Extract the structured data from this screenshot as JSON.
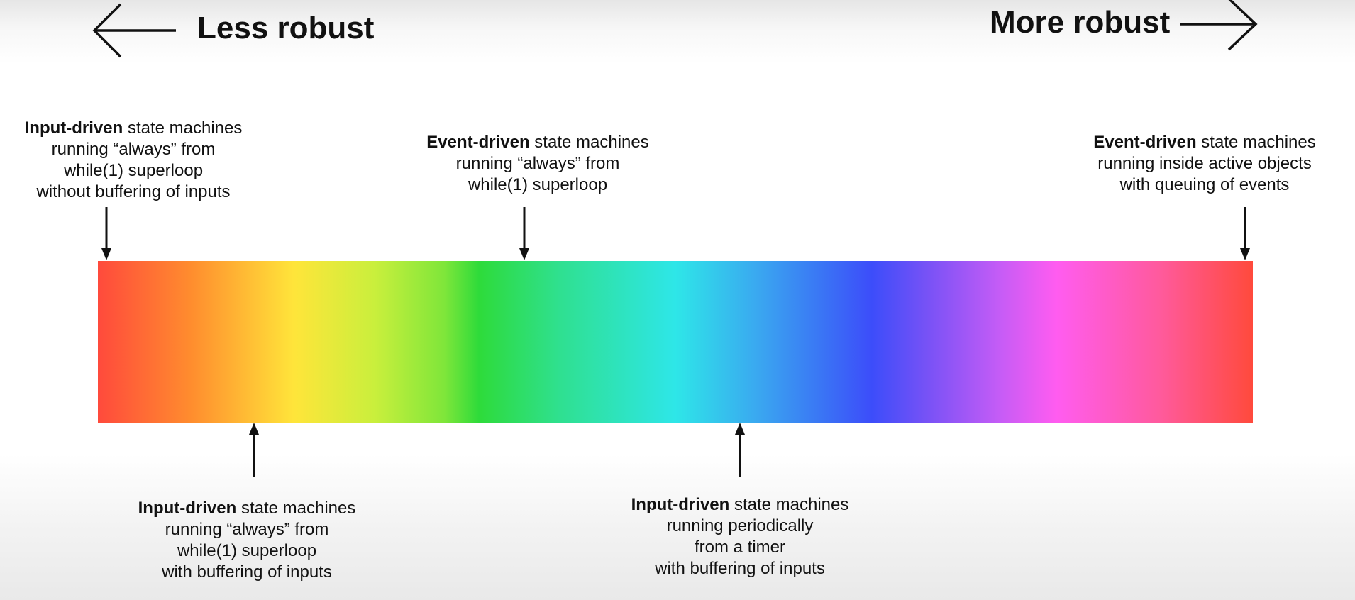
{
  "header": {
    "less_label": "Less robust",
    "more_label": "More robust"
  },
  "spectrum": {
    "colors": [
      "#ff4a3c",
      "#ffe53a",
      "#2edb3a",
      "#2ee6e8",
      "#3c4dfa",
      "#ff5cf0",
      "#ff4a3c"
    ]
  },
  "annotations": {
    "top_left": {
      "bold": "Input-driven",
      "rest": " state machines",
      "lines": [
        "running “always” from",
        "while(1) superloop",
        "without buffering of inputs"
      ]
    },
    "top_center": {
      "bold": "Event-driven",
      "rest": " state machines",
      "lines": [
        "running “always” from",
        "while(1) superloop"
      ]
    },
    "top_right": {
      "bold": "Event-driven",
      "rest": " state machines",
      "lines": [
        "running inside active objects",
        "with queuing of events"
      ]
    },
    "bottom_left": {
      "bold": "Input-driven",
      "rest": " state machines",
      "lines": [
        "running “always” from",
        "while(1) superloop",
        "with buffering of inputs"
      ]
    },
    "bottom_center": {
      "bold": "Input-driven",
      "rest": " state machines",
      "lines": [
        "running periodically",
        "from a timer",
        "with buffering of inputs"
      ]
    }
  }
}
